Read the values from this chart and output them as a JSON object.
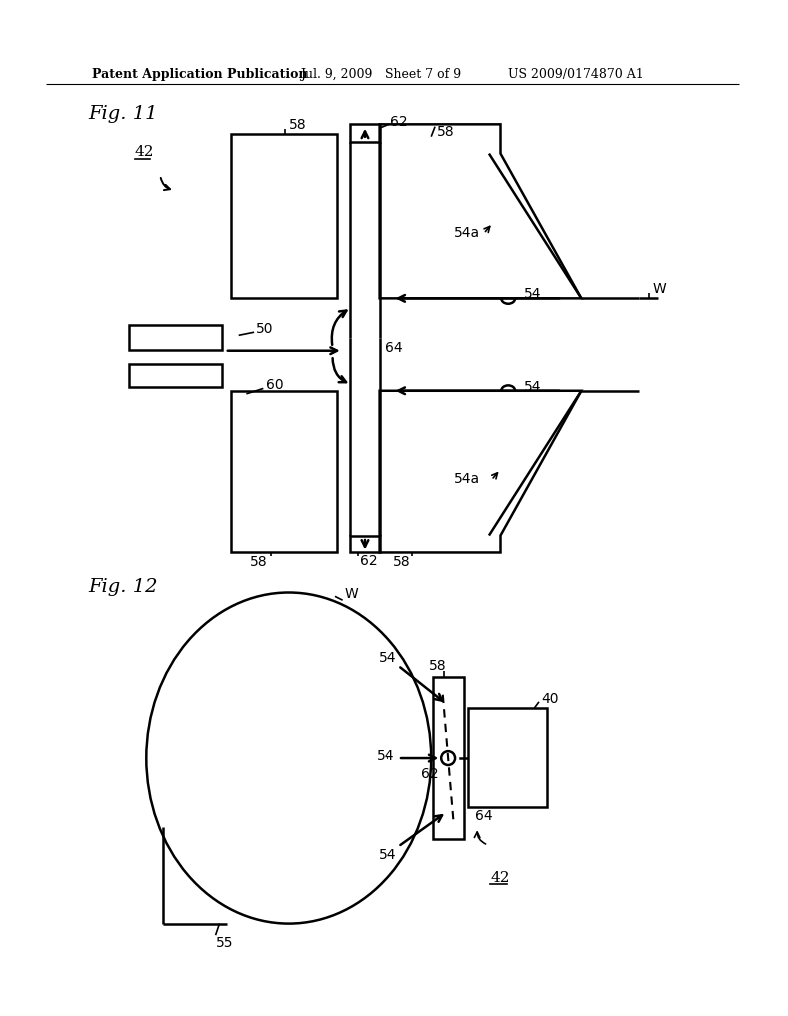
{
  "bg_color": "#ffffff",
  "line_color": "#000000",
  "line_width": 1.8
}
